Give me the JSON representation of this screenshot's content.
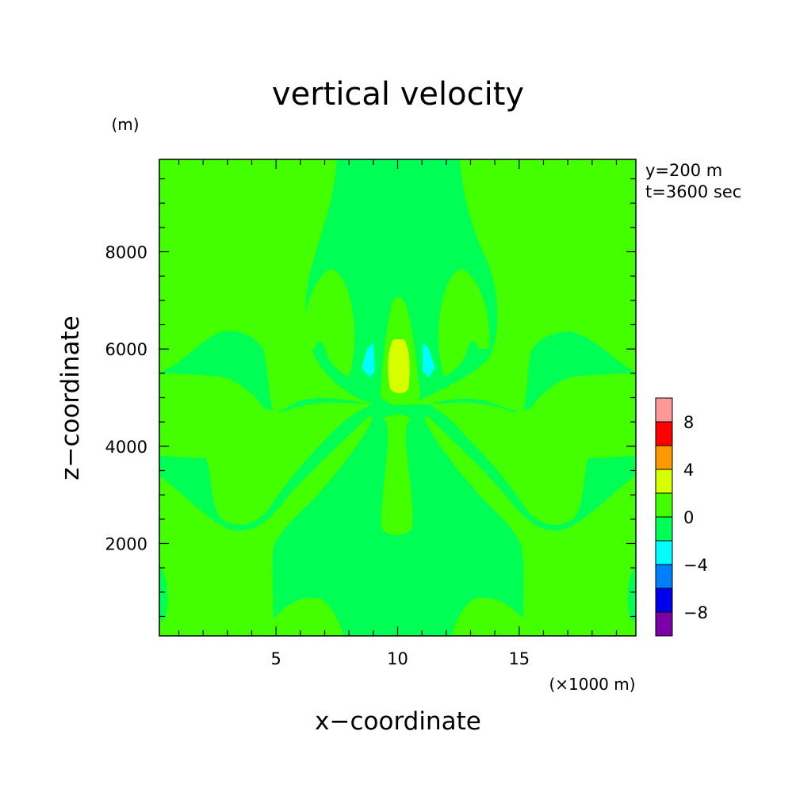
{
  "chart_data": {
    "type": "heatmap",
    "title": "vertical velocity",
    "xlabel": "x−coordinate",
    "ylabel": "z−coordinate",
    "x_unit": "(×1000 m)",
    "y_unit": "(m)",
    "annotations": [
      "y=200 m",
      "t=3600 sec"
    ],
    "xlim": [
      0.2,
      19.8
    ],
    "ylim": [
      100,
      9900
    ],
    "x_ticks": [
      5,
      10,
      15
    ],
    "x_tick_labels": [
      "5",
      "10",
      "15"
    ],
    "y_ticks": [
      2000,
      4000,
      6000,
      8000
    ],
    "y_tick_labels": [
      "2000",
      "4000",
      "6000",
      "8000"
    ],
    "grid": false,
    "colorbar": {
      "levels": [
        -10,
        -8,
        -6,
        -4,
        -2,
        0,
        2,
        4,
        6,
        8,
        10
      ],
      "labels": [
        "8",
        "4",
        "0",
        "−4",
        "−8"
      ],
      "label_values": [
        8,
        4,
        0,
        -4,
        -8
      ],
      "colors": [
        "#7b00a8",
        "#0000ee",
        "#0080ff",
        "#00ffff",
        "#00ff55",
        "#44ff00",
        "#d8ff00",
        "#ff9900",
        "#ff0000",
        "#ff9999"
      ]
    },
    "regions": [
      {
        "band": [
          0,
          2
        ],
        "color": "#44ff00",
        "description": "background weak updraft"
      },
      {
        "band": [
          -2,
          0
        ],
        "color": "#00ff55",
        "description": "central column and horizontal wave bands"
      },
      {
        "band": [
          2,
          4
        ],
        "color": "#d8ff00",
        "description": "core updraft",
        "x": [
          9.6,
          10.4
        ],
        "z": [
          5000,
          6200
        ]
      },
      {
        "band": [
          -4,
          -2
        ],
        "color": "#00ffff",
        "description": "downdraft cells",
        "x": [
          8.6,
          11.4
        ],
        "z": [
          5400,
          6200
        ]
      }
    ]
  }
}
